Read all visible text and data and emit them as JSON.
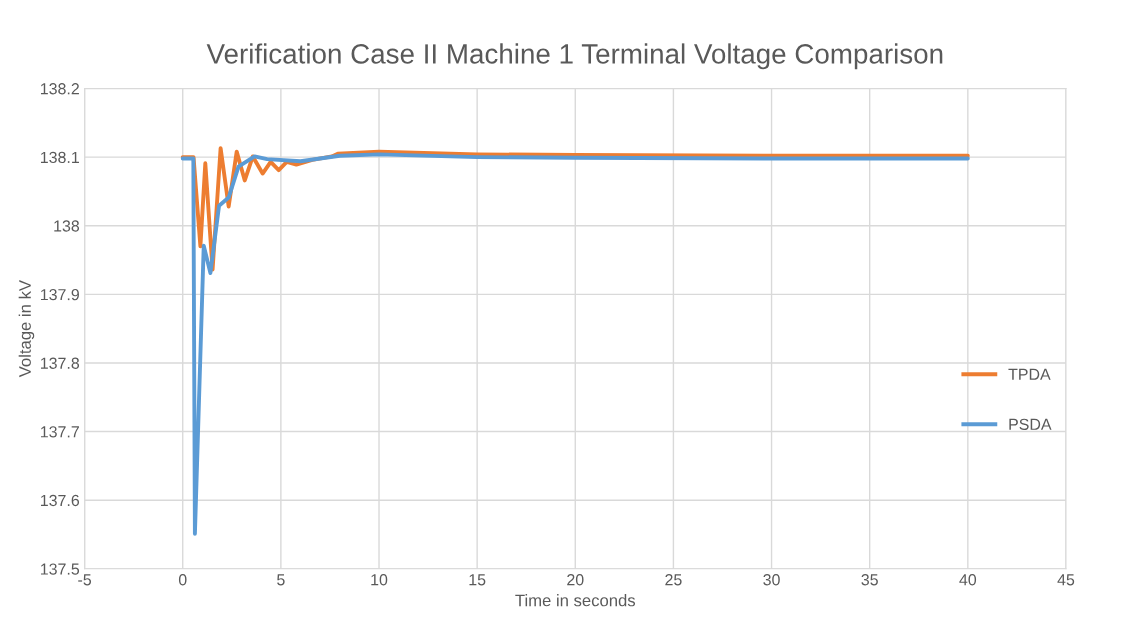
{
  "chart_data": {
    "type": "line",
    "title": "Verification Case II Machine 1 Terminal Voltage Comparison",
    "xlabel": "Time in seconds",
    "ylabel": "Voltage in kV",
    "xlim": [
      -5,
      45
    ],
    "xticks": [
      -5,
      0,
      5,
      10,
      15,
      20,
      25,
      30,
      35,
      40,
      45
    ],
    "ylim": [
      137.5,
      138.2
    ],
    "yticks": [
      137.5,
      137.6,
      137.7,
      137.8,
      137.9,
      {
        "value": 138,
        "label": "138"
      },
      138.1,
      138.2
    ],
    "grid": true,
    "legend": "right",
    "line_style": "solid",
    "marker": "none",
    "series": [
      {
        "name": "TPDA",
        "color": "#ed7d31",
        "x": [
          0,
          0.55,
          0.9,
          1.15,
          1.52,
          1.93,
          2.34,
          2.75,
          3.16,
          3.57,
          4.07,
          4.48,
          4.89,
          5.3,
          5.79,
          6.6,
          7.6,
          7.9,
          10,
          15,
          20,
          30,
          40
        ],
        "values": [
          138.1,
          138.1,
          137.97,
          138.091,
          137.936,
          138.113,
          138.028,
          138.108,
          138.066,
          138.101,
          138.076,
          138.093,
          138.081,
          138.093,
          138.089,
          138.096,
          138.101,
          138.105,
          138.108,
          138.104,
          138.103,
          138.102,
          138.102
        ]
      },
      {
        "name": "PSDA",
        "color": "#5b9bd5",
        "x": [
          0,
          0.54,
          0.62,
          1.07,
          1.41,
          1.85,
          2.34,
          2.84,
          3.66,
          4.3,
          6,
          8,
          10,
          15,
          20,
          30,
          40
        ],
        "values": [
          138.098,
          138.098,
          137.551,
          137.971,
          137.931,
          138.029,
          138.041,
          138.086,
          138.101,
          138.097,
          138.094,
          138.102,
          138.104,
          138.1,
          138.099,
          138.098,
          138.098
        ]
      }
    ]
  }
}
